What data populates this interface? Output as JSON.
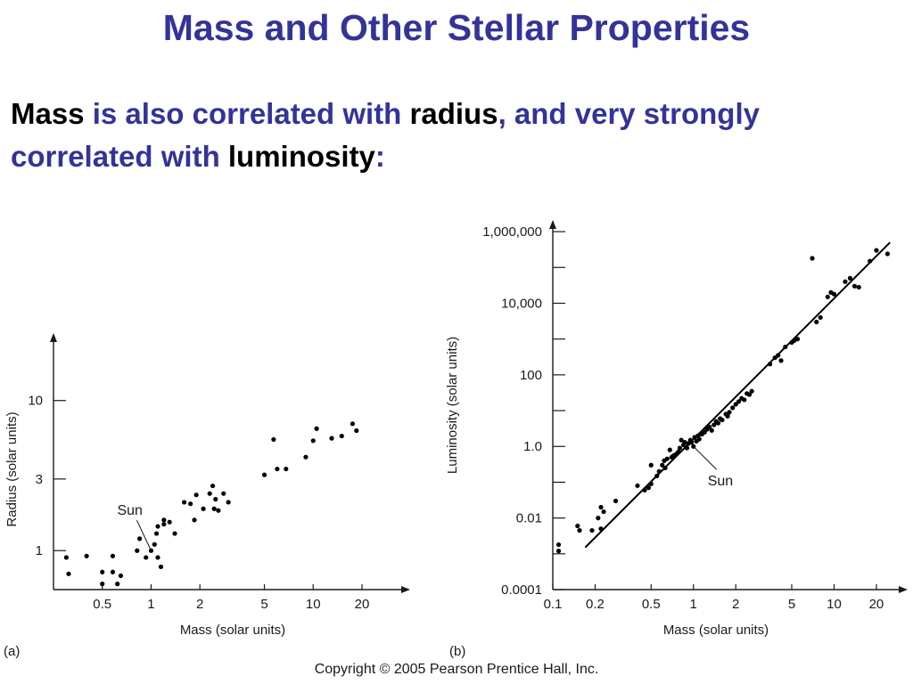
{
  "slide": {
    "title": "Mass and Other Stellar Properties",
    "intro": [
      {
        "text": "Mass",
        "kw": true
      },
      {
        "text": " is also correlated with ",
        "kw": false
      },
      {
        "text": "radius",
        "kw": true
      },
      {
        "text": ", and very strongly correlated with ",
        "kw": false
      },
      {
        "text": "luminosity",
        "kw": true
      },
      {
        "text": ":",
        "kw": false
      }
    ],
    "copyright": "Copyright © 2005 Pearson Prentice Hall, Inc.",
    "colors": {
      "title": "#333399",
      "keyword": "#000000",
      "marks": "#000000"
    }
  },
  "chart_data": [
    {
      "type": "scatter",
      "panel_label": "(a)",
      "xlabel": "Mass (solar units)",
      "ylabel": "Radius (solar units)",
      "xscale": "log",
      "yscale": "log",
      "xlim": [
        0.25,
        30
      ],
      "ylim": [
        0.55,
        22
      ],
      "xticks": [
        0.5,
        1,
        2,
        5,
        10,
        20
      ],
      "xtick_labels": [
        "0.5",
        "1",
        "2",
        "5",
        "10",
        "20"
      ],
      "yticks": [
        1,
        3,
        10
      ],
      "ytick_labels": [
        "1",
        "3",
        "10"
      ],
      "annotation": {
        "text": "Sun",
        "x": 1.0,
        "y": 1.0
      },
      "points": [
        [
          0.3,
          0.9
        ],
        [
          0.31,
          0.7
        ],
        [
          0.4,
          0.92
        ],
        [
          0.5,
          0.72
        ],
        [
          0.5,
          0.6
        ],
        [
          0.58,
          0.92
        ],
        [
          0.58,
          0.72
        ],
        [
          0.62,
          0.6
        ],
        [
          0.65,
          0.68
        ],
        [
          0.82,
          1.0
        ],
        [
          0.85,
          1.2
        ],
        [
          0.93,
          0.9
        ],
        [
          1.0,
          1.0
        ],
        [
          1.05,
          1.1
        ],
        [
          1.08,
          1.3
        ],
        [
          1.1,
          1.45
        ],
        [
          1.1,
          0.9
        ],
        [
          1.15,
          0.78
        ],
        [
          1.2,
          1.5
        ],
        [
          1.2,
          1.6
        ],
        [
          1.3,
          1.55
        ],
        [
          1.4,
          1.3
        ],
        [
          1.6,
          2.1
        ],
        [
          1.75,
          2.05
        ],
        [
          1.85,
          1.6
        ],
        [
          1.9,
          2.35
        ],
        [
          2.1,
          1.9
        ],
        [
          2.3,
          2.4
        ],
        [
          2.4,
          2.7
        ],
        [
          2.5,
          2.2
        ],
        [
          2.45,
          1.9
        ],
        [
          2.6,
          1.85
        ],
        [
          2.8,
          2.4
        ],
        [
          3.0,
          2.1
        ],
        [
          5.0,
          3.2
        ],
        [
          5.7,
          5.5
        ],
        [
          6.0,
          3.5
        ],
        [
          6.8,
          3.5
        ],
        [
          9.0,
          4.2
        ],
        [
          10.0,
          5.4
        ],
        [
          10.5,
          6.5
        ],
        [
          13.0,
          5.6
        ],
        [
          15.0,
          5.8
        ],
        [
          17.5,
          7.0
        ],
        [
          18.5,
          6.3
        ]
      ]
    },
    {
      "type": "scatter",
      "panel_label": "(b)",
      "xlabel": "Mass (solar units)",
      "ylabel": "Luminosity (solar units)",
      "xscale": "log",
      "yscale": "log",
      "xlim": [
        0.1,
        28
      ],
      "ylim": [
        0.0001,
        2000000
      ],
      "xticks": [
        0.1,
        0.2,
        0.5,
        1,
        2,
        5,
        10,
        20
      ],
      "xtick_labels": [
        "0.1",
        "0.2",
        "0.5",
        "1",
        "2",
        "5",
        "10",
        "20"
      ],
      "yticks": [
        0.0001,
        0.01,
        1,
        100,
        10000,
        1000000
      ],
      "ytick_labels": [
        "0.0001",
        "0.01",
        "1.0",
        "100",
        "10,000",
        "1,000,000"
      ],
      "yminor": [
        0.001,
        0.1,
        10,
        1000,
        100000
      ],
      "fit_line": [
        [
          0.17,
          0.0015
        ],
        [
          25,
          500000
        ]
      ],
      "annotation": {
        "text": "Sun",
        "x": 1.0,
        "y": 1.0
      },
      "points": [
        [
          0.11,
          0.0018
        ],
        [
          0.11,
          0.0012
        ],
        [
          0.15,
          0.006
        ],
        [
          0.155,
          0.0045
        ],
        [
          0.19,
          0.0045
        ],
        [
          0.21,
          0.01
        ],
        [
          0.22,
          0.02
        ],
        [
          0.23,
          0.015
        ],
        [
          0.22,
          0.005
        ],
        [
          0.28,
          0.03
        ],
        [
          0.4,
          0.08
        ],
        [
          0.45,
          0.06
        ],
        [
          0.48,
          0.07
        ],
        [
          0.5,
          0.09
        ],
        [
          0.5,
          0.3
        ],
        [
          0.55,
          0.15
        ],
        [
          0.57,
          0.2
        ],
        [
          0.6,
          0.3
        ],
        [
          0.62,
          0.4
        ],
        [
          0.63,
          0.25
        ],
        [
          0.65,
          0.45
        ],
        [
          0.68,
          0.8
        ],
        [
          0.7,
          0.5
        ],
        [
          0.72,
          0.55
        ],
        [
          0.75,
          0.6
        ],
        [
          0.78,
          0.7
        ],
        [
          0.8,
          0.9
        ],
        [
          0.82,
          1.5
        ],
        [
          0.85,
          1.1
        ],
        [
          0.87,
          1.3
        ],
        [
          0.9,
          0.9
        ],
        [
          0.92,
          1.2
        ],
        [
          0.95,
          1.5
        ],
        [
          0.97,
          1.3
        ],
        [
          1.0,
          1.0
        ],
        [
          1.02,
          1.8
        ],
        [
          1.05,
          1.4
        ],
        [
          1.08,
          2.0
        ],
        [
          1.1,
          1.6
        ],
        [
          1.15,
          2.2
        ],
        [
          1.2,
          2.5
        ],
        [
          1.25,
          3.0
        ],
        [
          1.3,
          3.5
        ],
        [
          1.35,
          2.8
        ],
        [
          1.4,
          4.0
        ],
        [
          1.45,
          5.0
        ],
        [
          1.5,
          4.5
        ],
        [
          1.55,
          6.0
        ],
        [
          1.6,
          5.5
        ],
        [
          1.7,
          8.0
        ],
        [
          1.75,
          7.0
        ],
        [
          1.8,
          9.0
        ],
        [
          1.9,
          12.0
        ],
        [
          2.0,
          15.0
        ],
        [
          2.1,
          18.0
        ],
        [
          2.2,
          22.0
        ],
        [
          2.3,
          20.0
        ],
        [
          2.4,
          30.0
        ],
        [
          2.5,
          28.0
        ],
        [
          2.6,
          35.0
        ],
        [
          3.5,
          200.0
        ],
        [
          3.8,
          300.0
        ],
        [
          4.0,
          350.0
        ],
        [
          4.2,
          250.0
        ],
        [
          4.5,
          600.0
        ],
        [
          5.0,
          800.0
        ],
        [
          5.2,
          900.0
        ],
        [
          5.5,
          1000.0
        ],
        [
          7.0,
          180000.0
        ],
        [
          7.5,
          3000.0
        ],
        [
          8.0,
          4000.0
        ],
        [
          9.0,
          15000.0
        ],
        [
          9.5,
          20000.0
        ],
        [
          10.0,
          18000.0
        ],
        [
          12.0,
          40000.0
        ],
        [
          13.0,
          50000.0
        ],
        [
          14.0,
          30000.0
        ],
        [
          15.0,
          28000.0
        ],
        [
          18.0,
          150000.0
        ],
        [
          20.0,
          300000.0
        ],
        [
          24.0,
          240000.0
        ]
      ]
    }
  ]
}
